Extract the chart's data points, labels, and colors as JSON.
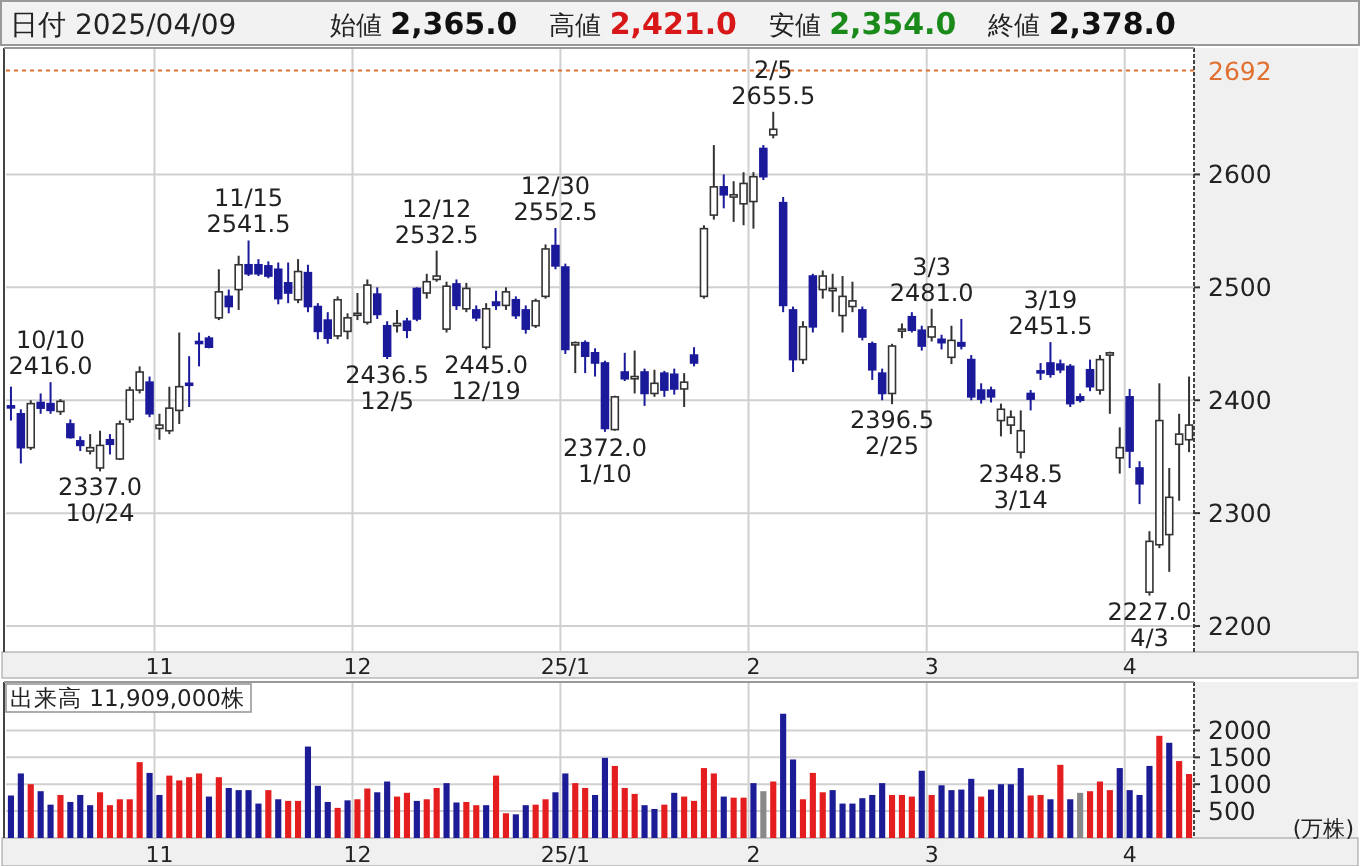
{
  "chart_data": [
    {
      "type": "candlestick",
      "title": "日付 2025/04/09",
      "subtitle": "始値 2,365.0  高値 2,421.0  安値 2,354.0  終値 2,378.0",
      "categories": [
        null,
        null,
        null,
        null,
        null,
        null,
        null,
        null,
        null,
        null,
        null,
        null,
        null,
        null,
        null,
        "11",
        null,
        null,
        null,
        null,
        null,
        null,
        null,
        null,
        null,
        null,
        null,
        null,
        null,
        null,
        null,
        null,
        null,
        null,
        null,
        "12",
        null,
        null,
        null,
        null,
        null,
        null,
        null,
        null,
        null,
        null,
        null,
        null,
        null,
        null,
        null,
        null,
        null,
        null,
        null,
        null,
        "25/1",
        null,
        null,
        null,
        null,
        null,
        null,
        null,
        null,
        null,
        null,
        null,
        null,
        null,
        null,
        null,
        null,
        null,
        null,
        "2",
        null,
        null,
        null,
        null,
        null,
        null,
        null,
        null,
        null,
        null,
        null,
        null,
        null,
        null,
        null,
        null,
        null,
        "3",
        null,
        null,
        null,
        null,
        null,
        null,
        null,
        null,
        null,
        null,
        null,
        null,
        null,
        null,
        null,
        null,
        null,
        null,
        null,
        "4",
        null,
        null,
        null,
        null,
        null,
        null
      ],
      "ohlc": [
        [
          2395,
          2412,
          2382,
          2394
        ],
        [
          2388,
          2392,
          2344,
          2358
        ],
        [
          2358,
          2400,
          2356,
          2397
        ],
        [
          2398,
          2406,
          2388,
          2393
        ],
        [
          2397,
          2416,
          2388,
          2391
        ],
        [
          2390,
          2401,
          2387,
          2399
        ],
        [
          2379,
          2383,
          2366,
          2367
        ],
        [
          2364,
          2368,
          2355,
          2360
        ],
        [
          2355,
          2370,
          2352,
          2358
        ],
        [
          2340,
          2373,
          2337,
          2360
        ],
        [
          2365,
          2370,
          2352,
          2361
        ],
        [
          2348,
          2382,
          2347,
          2379
        ],
        [
          2383,
          2412,
          2380,
          2409
        ],
        [
          2409,
          2430,
          2406,
          2425
        ],
        [
          2416,
          2421,
          2385,
          2388
        ],
        [
          2375,
          2388,
          2365,
          2378
        ],
        [
          2373,
          2412,
          2370,
          2393
        ],
        [
          2391,
          2460,
          2379,
          2412
        ],
        [
          2415,
          2439,
          2394,
          2414
        ],
        [
          2452,
          2460,
          2430,
          2451
        ],
        [
          2455,
          2457,
          2446,
          2447
        ],
        [
          2473,
          2516,
          2471,
          2496
        ],
        [
          2492,
          2498,
          2477,
          2483
        ],
        [
          2498,
          2528,
          2480,
          2520
        ],
        [
          2520,
          2541.5,
          2510,
          2512
        ],
        [
          2520,
          2525,
          2510,
          2512
        ],
        [
          2519,
          2523,
          2508,
          2510
        ],
        [
          2516,
          2522,
          2485,
          2490
        ],
        [
          2504,
          2522,
          2486,
          2495
        ],
        [
          2489,
          2525,
          2486,
          2514
        ],
        [
          2513,
          2520,
          2478,
          2483
        ],
        [
          2483,
          2486,
          2454,
          2461
        ],
        [
          2471,
          2478,
          2450,
          2455
        ],
        [
          2457,
          2492,
          2454,
          2489
        ],
        [
          2461,
          2477,
          2454,
          2473
        ],
        [
          2476,
          2495,
          2471,
          2477
        ],
        [
          2469,
          2507,
          2467,
          2502
        ],
        [
          2494,
          2500,
          2472,
          2476
        ],
        [
          2466,
          2470,
          2436.5,
          2439
        ],
        [
          2466,
          2480,
          2460,
          2468
        ],
        [
          2470,
          2473,
          2455,
          2462
        ],
        [
          2499,
          2500,
          2470,
          2472
        ],
        [
          2495,
          2512,
          2490,
          2505
        ],
        [
          2507,
          2532.5,
          2505,
          2510
        ],
        [
          2463,
          2505,
          2460,
          2501
        ],
        [
          2503,
          2507,
          2480,
          2484
        ],
        [
          2481,
          2504,
          2478,
          2499
        ],
        [
          2480,
          2484,
          2470,
          2473
        ],
        [
          2447,
          2486,
          2445,
          2481
        ],
        [
          2487,
          2497,
          2480,
          2484
        ],
        [
          2484,
          2500,
          2480,
          2496
        ],
        [
          2489,
          2492,
          2472,
          2475
        ],
        [
          2480,
          2484,
          2459,
          2463
        ],
        [
          2466,
          2490,
          2464,
          2488
        ],
        [
          2492,
          2538,
          2490,
          2534
        ],
        [
          2537,
          2552.5,
          2516,
          2519
        ],
        [
          2518,
          2521,
          2441,
          2445
        ],
        [
          2449,
          2452,
          2424,
          2451
        ],
        [
          2451,
          2453,
          2424,
          2439
        ],
        [
          2442,
          2446,
          2421,
          2433
        ],
        [
          2433,
          2435,
          2372,
          2375
        ],
        [
          2374,
          2404,
          2373,
          2403
        ],
        [
          2425,
          2442,
          2417,
          2419
        ],
        [
          2419,
          2444,
          2406,
          2421
        ],
        [
          2425,
          2428,
          2395,
          2406
        ],
        [
          2406,
          2427,
          2403,
          2415
        ],
        [
          2424,
          2426,
          2403,
          2409
        ],
        [
          2423,
          2428,
          2405,
          2410
        ],
        [
          2410,
          2424,
          2394,
          2416
        ],
        [
          2440,
          2447,
          2430,
          2433
        ],
        [
          2492,
          2555,
          2490,
          2552
        ],
        [
          2564,
          2626,
          2560,
          2589
        ],
        [
          2589,
          2600,
          2570,
          2582
        ],
        [
          2580,
          2594,
          2558,
          2582
        ],
        [
          2574,
          2602,
          2555,
          2592
        ],
        [
          2576,
          2602,
          2552,
          2598
        ],
        [
          2623,
          2626,
          2595,
          2598
        ],
        [
          2635,
          2655.5,
          2632,
          2640
        ],
        [
          2575,
          2580,
          2478,
          2484
        ],
        [
          2480,
          2483,
          2425,
          2436
        ],
        [
          2436,
          2470,
          2432,
          2465
        ],
        [
          2510,
          2512,
          2460,
          2465
        ],
        [
          2498,
          2515,
          2490,
          2510
        ],
        [
          2497,
          2512,
          2478,
          2499
        ],
        [
          2475,
          2510,
          2460,
          2492
        ],
        [
          2483,
          2505,
          2478,
          2488
        ],
        [
          2480,
          2483,
          2453,
          2456
        ],
        [
          2450,
          2452,
          2418,
          2427
        ],
        [
          2424,
          2428,
          2400,
          2406
        ],
        [
          2406,
          2450,
          2396.5,
          2448
        ],
        [
          2462,
          2468,
          2455,
          2463
        ],
        [
          2474,
          2478,
          2460,
          2462
        ],
        [
          2462,
          2466,
          2444,
          2448
        ],
        [
          2456,
          2481,
          2452,
          2465
        ],
        [
          2454,
          2458,
          2445,
          2451
        ],
        [
          2438,
          2466,
          2432,
          2453
        ],
        [
          2451,
          2472,
          2445,
          2448
        ],
        [
          2436,
          2440,
          2400,
          2403
        ],
        [
          2409,
          2415,
          2397,
          2401
        ],
        [
          2409,
          2412,
          2398,
          2403
        ],
        [
          2382,
          2397,
          2368,
          2392
        ],
        [
          2378,
          2391,
          2370,
          2385
        ],
        [
          2354,
          2391,
          2348.5,
          2373
        ],
        [
          2406,
          2409,
          2391,
          2401
        ],
        [
          2426,
          2433,
          2418,
          2425
        ],
        [
          2433,
          2451.5,
          2420,
          2423
        ],
        [
          2432,
          2436,
          2424,
          2427
        ],
        [
          2430,
          2432,
          2394,
          2397
        ],
        [
          2403,
          2406,
          2398,
          2400
        ],
        [
          2427,
          2436,
          2408,
          2412
        ],
        [
          2409,
          2440,
          2405,
          2436
        ],
        [
          2440,
          2443,
          2388,
          2442
        ],
        [
          2349,
          2376,
          2335,
          2358
        ],
        [
          2403,
          2410,
          2340,
          2355
        ],
        [
          2340,
          2346,
          2308,
          2326
        ],
        [
          2230,
          2284,
          2227,
          2275
        ],
        [
          2272,
          2415,
          2269,
          2382
        ],
        [
          2281,
          2340,
          2248,
          2314
        ],
        [
          2361,
          2388,
          2311,
          2370
        ],
        [
          2365,
          2421,
          2354,
          2378
        ]
      ],
      "ylim": [
        2177,
        2712
      ],
      "yticks": [
        2200,
        2300,
        2400,
        2500,
        2600
      ],
      "grid": true,
      "ref_lines": [
        {
          "axis": "y",
          "value": 2692,
          "label": "2692",
          "color": "#e07030",
          "line_style": "dotted"
        }
      ],
      "annotations": [
        {
          "text": "10/10\n2416.0",
          "y": 2416
        },
        {
          "text": "2337.0\n10/24",
          "y": 2337
        },
        {
          "text": "11/15\n2541.5",
          "y": 2541.5
        },
        {
          "text": "2436.5\n12/5",
          "y": 2436.5
        },
        {
          "text": "12/12\n2532.5",
          "y": 2532.5
        },
        {
          "text": "2445.0\n12/19",
          "y": 2445
        },
        {
          "text": "12/30\n2552.5",
          "y": 2552.5
        },
        {
          "text": "2372.0\n1/10",
          "y": 2372
        },
        {
          "text": "2/5\n2655.5",
          "y": 2655.5
        },
        {
          "text": "3/3\n2481.0",
          "y": 2481
        },
        {
          "text": "2396.5\n2/25",
          "y": 2396.5
        },
        {
          "text": "3/19\n2451.5",
          "y": 2451.5
        },
        {
          "text": "2348.5\n3/14",
          "y": 2348.5
        },
        {
          "text": "2227.0\n4/3",
          "y": 2227
        }
      ]
    },
    {
      "type": "bar",
      "title": "出来高 11,909,000株",
      "ylabel": "(万株)",
      "categories": [
        null,
        null,
        null,
        null,
        null,
        null,
        null,
        null,
        null,
        null,
        null,
        null,
        null,
        null,
        null,
        "11",
        null,
        null,
        null,
        null,
        null,
        null,
        null,
        null,
        null,
        null,
        null,
        null,
        null,
        null,
        null,
        null,
        null,
        null,
        null,
        "12",
        null,
        null,
        null,
        null,
        null,
        null,
        null,
        null,
        null,
        null,
        null,
        null,
        null,
        null,
        null,
        null,
        null,
        null,
        null,
        null,
        "25/1",
        null,
        null,
        null,
        null,
        null,
        null,
        null,
        null,
        null,
        null,
        null,
        null,
        null,
        null,
        null,
        null,
        null,
        null,
        "2",
        null,
        null,
        null,
        null,
        null,
        null,
        null,
        null,
        null,
        null,
        null,
        null,
        null,
        null,
        null,
        null,
        null,
        "3",
        null,
        null,
        null,
        null,
        null,
        null,
        null,
        null,
        null,
        null,
        null,
        null,
        null,
        null,
        null,
        null,
        null,
        null,
        null,
        "4",
        null,
        null,
        null,
        null,
        null,
        null
      ],
      "values": [
        790,
        1200,
        1000,
        870,
        620,
        800,
        670,
        800,
        610,
        850,
        610,
        720,
        720,
        1410,
        1210,
        800,
        1160,
        1070,
        1130,
        1200,
        770,
        1130,
        930,
        890,
        890,
        640,
        890,
        720,
        690,
        690,
        1700,
        970,
        670,
        560,
        700,
        720,
        920,
        850,
        1050,
        770,
        840,
        690,
        720,
        930,
        1020,
        660,
        670,
        610,
        610,
        1160,
        460,
        440,
        610,
        620,
        720,
        850,
        1200,
        1020,
        930,
        800,
        1490,
        1340,
        930,
        820,
        610,
        540,
        620,
        840,
        770,
        690,
        1300,
        1200,
        770,
        750,
        750,
        1020,
        870,
        1050,
        2310,
        1460,
        720,
        1210,
        850,
        890,
        640,
        640,
        740,
        800,
        1020,
        800,
        800,
        770,
        1250,
        800,
        980,
        890,
        900,
        1100,
        770,
        900,
        1000,
        1000,
        1300,
        790,
        800,
        720,
        1360,
        720,
        840,
        870,
        1050,
        890,
        1300,
        890,
        800,
        1340,
        1900,
        1770,
        1430,
        1190
      ],
      "colors": [
        "#1c1c96",
        "#1c1c96",
        "#e41e1e",
        "#1c1c96",
        "#1c1c96",
        "#e41e1e",
        "#1c1c96",
        "#1c1c96",
        "#1c1c96",
        "#e41e1e",
        "#e41e1e",
        "#e41e1e",
        "#e41e1e",
        "#e41e1e",
        "#1c1c96",
        "#1c1c96",
        "#e41e1e",
        "#e41e1e",
        "#e41e1e",
        "#e41e1e",
        "#1c1c96",
        "#e41e1e",
        "#1c1c96",
        "#1c1c96",
        "#1c1c96",
        "#1c1c96",
        "#e41e1e",
        "#1c1c96",
        "#e41e1e",
        "#e41e1e",
        "#1c1c96",
        "#1c1c96",
        "#1c1c96",
        "#e41e1e",
        "#1c1c96",
        "#e41e1e",
        "#e41e1e",
        "#1c1c96",
        "#1c1c96",
        "#e41e1e",
        "#e41e1e",
        "#1c1c96",
        "#e41e1e",
        "#e41e1e",
        "#1c1c96",
        "#1c1c96",
        "#e41e1e",
        "#e41e1e",
        "#1c1c96",
        "#e41e1e",
        "#e41e1e",
        "#1c1c96",
        "#1c1c96",
        "#e41e1e",
        "#e41e1e",
        "#1c1c96",
        "#1c1c96",
        "#e41e1e",
        "#e41e1e",
        "#1c1c96",
        "#1c1c96",
        "#e41e1e",
        "#e41e1e",
        "#e41e1e",
        "#1c1c96",
        "#1c1c96",
        "#e41e1e",
        "#1c1c96",
        "#e41e1e",
        "#e41e1e",
        "#e41e1e",
        "#e41e1e",
        "#1c1c96",
        "#e41e1e",
        "#e41e1e",
        "#1c1c96",
        "#888888",
        "#e41e1e",
        "#1c1c96",
        "#1c1c96",
        "#e41e1e",
        "#e41e1e",
        "#e41e1e",
        "#1c1c96",
        "#1c1c96",
        "#1c1c96",
        "#1c1c96",
        "#1c1c96",
        "#1c1c96",
        "#e41e1e",
        "#e41e1e",
        "#e41e1e",
        "#1c1c96",
        "#e41e1e",
        "#1c1c96",
        "#1c1c96",
        "#1c1c96",
        "#1c1c96",
        "#e41e1e",
        "#1c1c96",
        "#1c1c96",
        "#1c1c96",
        "#1c1c96",
        "#e41e1e",
        "#e41e1e",
        "#1c1c96",
        "#e41e1e",
        "#1c1c96",
        "#888888",
        "#e41e1e",
        "#e41e1e",
        "#e41e1e",
        "#1c1c96",
        "#1c1c96",
        "#1c1c96",
        "#1c1c96",
        "#e41e1e",
        "#1c1c96",
        "#e41e1e",
        "#e41e1e"
      ],
      "ylim": [
        0,
        2900
      ],
      "yticks": [
        500,
        1000,
        1500,
        2000
      ],
      "grid": true
    }
  ]
}
